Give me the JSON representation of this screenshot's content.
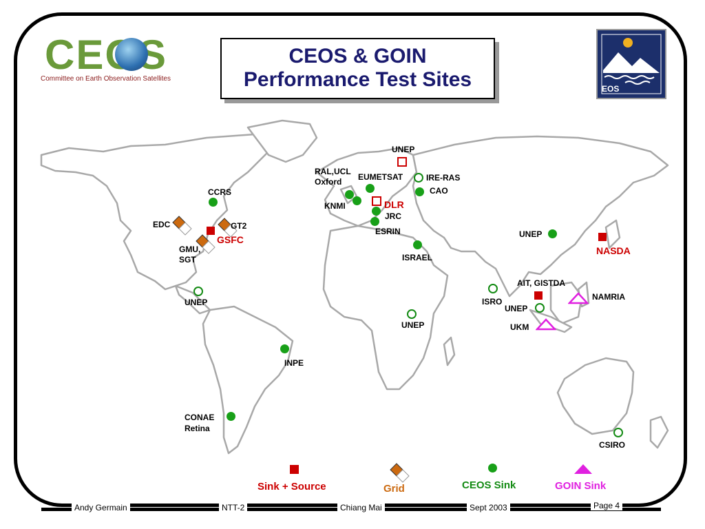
{
  "logo": {
    "name": "CEOS",
    "subtitle": "Committee on Earth Observation Satellites"
  },
  "title": {
    "line1": "CEOS & GOIN",
    "line2": "Performance Test Sites"
  },
  "eos_logo": {
    "text": "EOS"
  },
  "sites": [
    {
      "label": "UNEP",
      "type": "sink-source-open"
    },
    {
      "label": "RAL,UCL",
      "type": "ceos-sink"
    },
    {
      "label": "Oxford",
      "type": "ceos-sink"
    },
    {
      "label": "EUMETSAT",
      "type": "ceos-sink"
    },
    {
      "label": "IRE-RAS",
      "type": "ceos-sink-open"
    },
    {
      "label": "CAO",
      "type": "ceos-sink"
    },
    {
      "label": "KNMI",
      "type": "ceos-sink"
    },
    {
      "label": "DLR",
      "type": "sink-source-open"
    },
    {
      "label": "JRC",
      "type": "ceos-sink"
    },
    {
      "label": "ESRIN",
      "type": "ceos-sink"
    },
    {
      "label": "CCRS",
      "type": "ceos-sink"
    },
    {
      "label": "EDC",
      "type": "grid"
    },
    {
      "label": "GT2",
      "type": "grid"
    },
    {
      "label": "GSFC",
      "type": "sink-source"
    },
    {
      "label": "GMU,",
      "type": "grid"
    },
    {
      "label": "SGT",
      "type": "grid"
    },
    {
      "label": "ISRAEL",
      "type": "ceos-sink"
    },
    {
      "label": "UNEP",
      "type": "ceos-sink"
    },
    {
      "label": "NASDA",
      "type": "sink-source"
    },
    {
      "label": "AIT, GISTDA",
      "type": "sink-source"
    },
    {
      "label": "NAMRIA",
      "type": "goin-sink"
    },
    {
      "label": "ISRO",
      "type": "ceos-sink-open"
    },
    {
      "label": "UNEP",
      "type": "ceos-sink-open"
    },
    {
      "label": "UKM",
      "type": "goin-sink"
    },
    {
      "label": "UNEP",
      "type": "ceos-sink-open"
    },
    {
      "label": "UNEP",
      "type": "ceos-sink-open"
    },
    {
      "label": "INPE",
      "type": "ceos-sink"
    },
    {
      "label": "CONAE",
      "type": "ceos-sink"
    },
    {
      "label": "Retina",
      "type": "ceos-sink"
    },
    {
      "label": "CSIRO",
      "type": "ceos-sink-open"
    }
  ],
  "legend": [
    {
      "label": "Sink + Source",
      "color": "#cc0000"
    },
    {
      "label": "Grid",
      "color": "#cc6a10"
    },
    {
      "label": "CEOS Sink",
      "color": "#128a12"
    },
    {
      "label": "GOIN Sink",
      "color": "#e020e0"
    }
  ],
  "footer": {
    "author": "Andy Germain",
    "meeting": "NTT-2",
    "location": "Chiang Mai",
    "date": "Sept 2003",
    "page": "Page 4"
  }
}
